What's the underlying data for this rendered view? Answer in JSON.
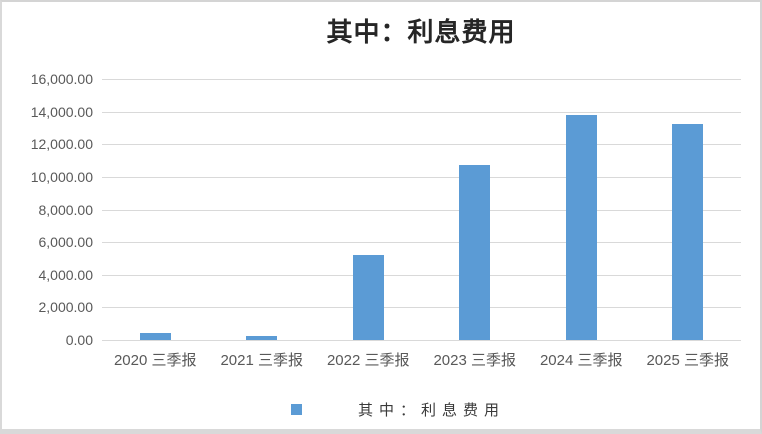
{
  "window": {
    "background": "#ffffff",
    "border_color": "#d4d4d4"
  },
  "chart_data": {
    "type": "bar",
    "title": "其中：利息费用",
    "categories": [
      "2020 三季报",
      "2021 三季报",
      "2022 三季报",
      "2023 三季报",
      "2024 三季报",
      "2025 三季报"
    ],
    "series": [
      {
        "name": "其中：利息费用",
        "values": [
          430,
          250,
          5200,
          10730,
          13790,
          13270
        ]
      }
    ],
    "xlabel": "",
    "ylabel": "",
    "ylim": [
      0,
      16000
    ],
    "y_tick_step": 2000,
    "y_tick_labels": [
      "0.00",
      "2,000.00",
      "4,000.00",
      "6,000.00",
      "8,000.00",
      "10,000.00",
      "12,000.00",
      "14,000.00",
      "16,000.00"
    ],
    "grid": true,
    "legend_position": "bottom",
    "legend": {
      "label": "其中：利息费用",
      "swatch_color": "#5B9BD5"
    },
    "colors": {
      "bar": "#5B9BD5",
      "gridline": "#D9D9D9",
      "axis_label": "#595959",
      "title": "#262626",
      "legend_label": "#3a3a3a"
    }
  }
}
